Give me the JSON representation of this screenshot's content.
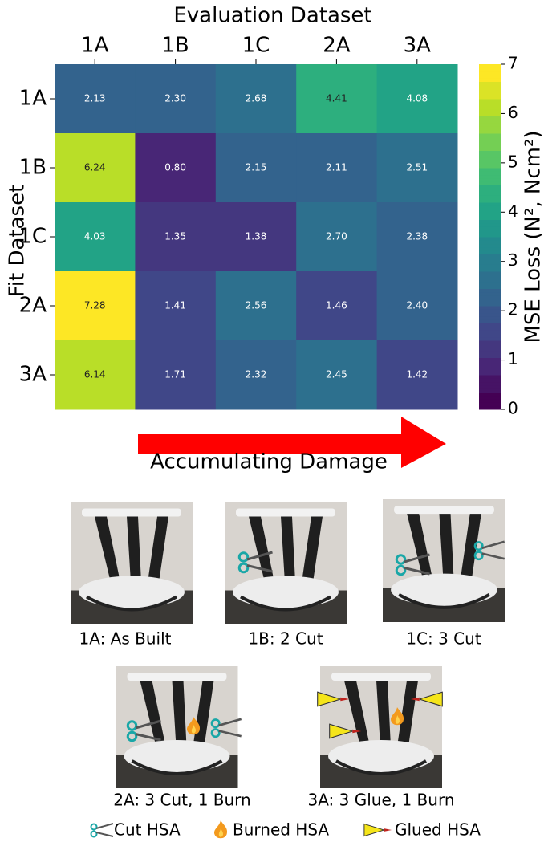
{
  "chart_data": {
    "type": "heatmap",
    "x_label": "Evaluation Dataset",
    "y_label": "Fit Dataset",
    "colorbar_label": "MSE Loss (N², Ncm²)",
    "annotation": "Accumulating Damage",
    "colormap": "viridis",
    "x_categories": [
      "1A",
      "1B",
      "1C",
      "2A",
      "3A"
    ],
    "y_categories": [
      "1A",
      "1B",
      "1C",
      "2A",
      "3A"
    ],
    "values": [
      [
        2.13,
        2.3,
        2.68,
        4.41,
        4.08
      ],
      [
        6.24,
        0.8,
        2.15,
        2.11,
        2.51
      ],
      [
        4.03,
        1.35,
        1.38,
        2.7,
        2.38
      ],
      [
        7.28,
        1.41,
        2.56,
        1.46,
        2.4
      ],
      [
        6.14,
        1.71,
        2.32,
        2.45,
        1.42
      ]
    ],
    "value_labels": [
      [
        "2.13",
        "2.30",
        "2.68",
        "4.41",
        "4.08"
      ],
      [
        "6.24",
        "0.80",
        "2.15",
        "2.11",
        "2.51"
      ],
      [
        "4.03",
        "1.35",
        "1.38",
        "2.70",
        "2.38"
      ],
      [
        "7.28",
        "1.41",
        "2.56",
        "1.46",
        "2.40"
      ],
      [
        "6.14",
        "1.71",
        "2.32",
        "2.45",
        "1.42"
      ]
    ],
    "zlim": [
      0,
      7
    ],
    "zticks": [
      0,
      1,
      2,
      3,
      4,
      5,
      6,
      7
    ]
  },
  "figure": {
    "panels": [
      {
        "caption": "1A: As Built"
      },
      {
        "caption": "1B: 2 Cut"
      },
      {
        "caption": "1C: 3 Cut"
      },
      {
        "caption": "2A: 3 Cut, 1 Burn"
      },
      {
        "caption": "3A: 3 Glue, 1 Burn"
      }
    ],
    "legend": [
      "Cut HSA",
      "Burned HSA",
      "Glued HSA"
    ]
  }
}
